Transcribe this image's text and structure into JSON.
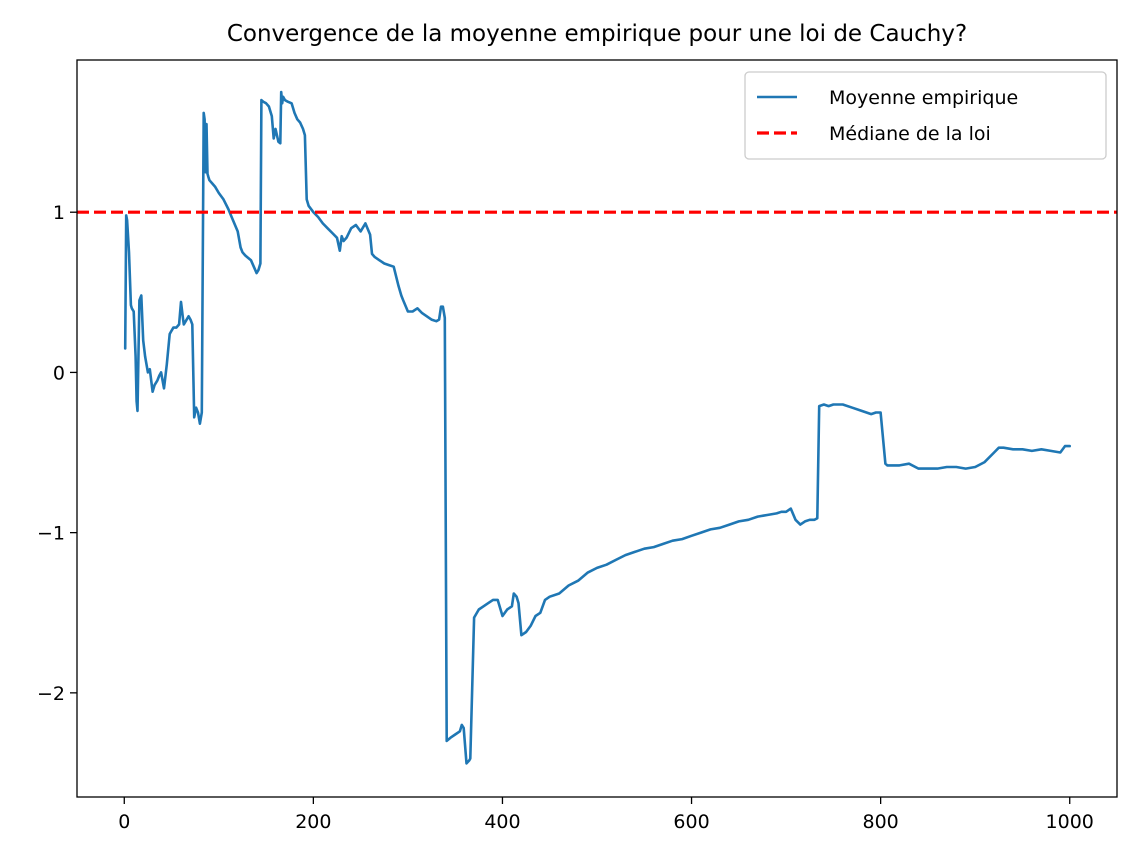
{
  "chart_data": {
    "type": "line",
    "title": "Convergence de la moyenne empirique pour une loi de Cauchy?",
    "xlabel": "",
    "ylabel": "",
    "xlim": [
      -50,
      1050
    ],
    "ylim": [
      -2.65,
      1.95
    ],
    "x_ticks": [
      0,
      200,
      400,
      600,
      800,
      1000
    ],
    "x_tick_labels": [
      "0",
      "200",
      "400",
      "600",
      "800",
      "1000"
    ],
    "y_ticks": [
      -2,
      -1,
      0,
      1
    ],
    "y_tick_labels": [
      "−2",
      "−1",
      "0",
      "1"
    ],
    "grid": false,
    "legend_position": "top-right",
    "series": [
      {
        "name": "Moyenne empirique",
        "color": "#1f77b4",
        "style": "solid",
        "x": [
          1,
          2,
          3,
          5,
          7,
          8,
          10,
          12,
          13,
          14,
          16,
          18,
          20,
          22,
          25,
          27,
          30,
          32,
          35,
          37,
          39,
          42,
          45,
          48,
          50,
          52,
          55,
          58,
          60,
          62,
          63,
          65,
          68,
          70,
          72,
          74,
          76,
          78,
          80,
          82,
          84,
          85,
          86,
          87,
          88,
          89,
          90,
          93,
          96,
          100,
          105,
          110,
          115,
          120,
          123,
          125,
          128,
          130,
          134,
          137,
          140,
          142,
          144,
          145,
          147,
          150,
          153,
          156,
          158,
          160,
          163,
          165,
          166,
          167,
          168,
          170,
          173,
          177,
          180,
          183,
          186,
          189,
          191,
          193,
          195,
          200,
          205,
          210,
          215,
          220,
          225,
          228,
          230,
          232,
          235,
          240,
          245,
          250,
          255,
          260,
          262,
          265,
          270,
          275,
          280,
          285,
          290,
          293,
          295,
          300,
          305,
          310,
          315,
          320,
          325,
          330,
          333,
          335,
          337,
          339,
          341,
          345,
          350,
          355,
          357,
          359,
          362,
          365,
          366,
          370,
          375,
          380,
          385,
          390,
          395,
          400,
          405,
          410,
          412,
          415,
          417,
          420,
          425,
          430,
          435,
          440,
          445,
          450,
          460,
          470,
          480,
          490,
          500,
          510,
          520,
          530,
          540,
          550,
          560,
          570,
          580,
          590,
          600,
          610,
          620,
          630,
          640,
          650,
          660,
          670,
          680,
          690,
          695,
          700,
          705,
          710,
          715,
          720,
          725,
          730,
          733,
          735,
          740,
          745,
          750,
          760,
          770,
          780,
          790,
          795,
          800,
          805,
          807,
          810,
          820,
          830,
          840,
          850,
          860,
          870,
          880,
          890,
          900,
          910,
          920,
          925,
          930,
          940,
          950,
          960,
          970,
          980,
          990,
          995,
          1000
        ],
        "y": [
          0.15,
          0.98,
          0.95,
          0.75,
          0.42,
          0.4,
          0.38,
          0.1,
          -0.18,
          -0.24,
          0.45,
          0.48,
          0.2,
          0.1,
          0.0,
          0.02,
          -0.12,
          -0.08,
          -0.05,
          -0.02,
          0.0,
          -0.1,
          0.05,
          0.24,
          0.26,
          0.28,
          0.28,
          0.3,
          0.44,
          0.34,
          0.3,
          0.32,
          0.35,
          0.33,
          0.3,
          -0.28,
          -0.22,
          -0.25,
          -0.32,
          -0.25,
          1.62,
          1.58,
          1.25,
          1.55,
          1.24,
          1.22,
          1.2,
          1.18,
          1.16,
          1.12,
          1.08,
          1.02,
          0.95,
          0.88,
          0.78,
          0.75,
          0.73,
          0.72,
          0.7,
          0.66,
          0.62,
          0.64,
          0.68,
          1.7,
          1.69,
          1.68,
          1.66,
          1.6,
          1.46,
          1.52,
          1.44,
          1.43,
          1.75,
          1.68,
          1.72,
          1.7,
          1.69,
          1.68,
          1.62,
          1.58,
          1.56,
          1.52,
          1.48,
          1.08,
          1.04,
          1.0,
          0.97,
          0.93,
          0.9,
          0.87,
          0.84,
          0.76,
          0.85,
          0.82,
          0.84,
          0.9,
          0.92,
          0.88,
          0.93,
          0.86,
          0.74,
          0.72,
          0.7,
          0.68,
          0.67,
          0.66,
          0.54,
          0.48,
          0.45,
          0.38,
          0.38,
          0.4,
          0.37,
          0.35,
          0.33,
          0.32,
          0.33,
          0.41,
          0.41,
          0.34,
          -2.3,
          -2.28,
          -2.26,
          -2.24,
          -2.2,
          -2.22,
          -2.44,
          -2.42,
          -2.41,
          -1.53,
          -1.48,
          -1.46,
          -1.44,
          -1.42,
          -1.42,
          -1.52,
          -1.48,
          -1.46,
          -1.38,
          -1.4,
          -1.44,
          -1.64,
          -1.62,
          -1.58,
          -1.52,
          -1.5,
          -1.42,
          -1.4,
          -1.38,
          -1.33,
          -1.3,
          -1.25,
          -1.22,
          -1.2,
          -1.17,
          -1.14,
          -1.12,
          -1.1,
          -1.09,
          -1.07,
          -1.05,
          -1.04,
          -1.02,
          -1.0,
          -0.98,
          -0.97,
          -0.95,
          -0.93,
          -0.92,
          -0.9,
          -0.89,
          -0.88,
          -0.87,
          -0.87,
          -0.85,
          -0.92,
          -0.95,
          -0.93,
          -0.92,
          -0.92,
          -0.91,
          -0.21,
          -0.2,
          -0.21,
          -0.2,
          -0.2,
          -0.22,
          -0.24,
          -0.26,
          -0.25,
          -0.25,
          -0.57,
          -0.58,
          -0.58,
          -0.58,
          -0.57,
          -0.6,
          -0.6,
          -0.6,
          -0.59,
          -0.59,
          -0.6,
          -0.59,
          -0.56,
          -0.5,
          -0.47,
          -0.47,
          -0.48,
          -0.48,
          -0.49,
          -0.48,
          -0.49,
          -0.5,
          -0.46,
          -0.46
        ]
      },
      {
        "name": "Médiane de la loi",
        "color": "#ff0000",
        "style": "dashed",
        "x": [
          -50,
          1050
        ],
        "y": [
          1,
          1
        ]
      }
    ]
  }
}
